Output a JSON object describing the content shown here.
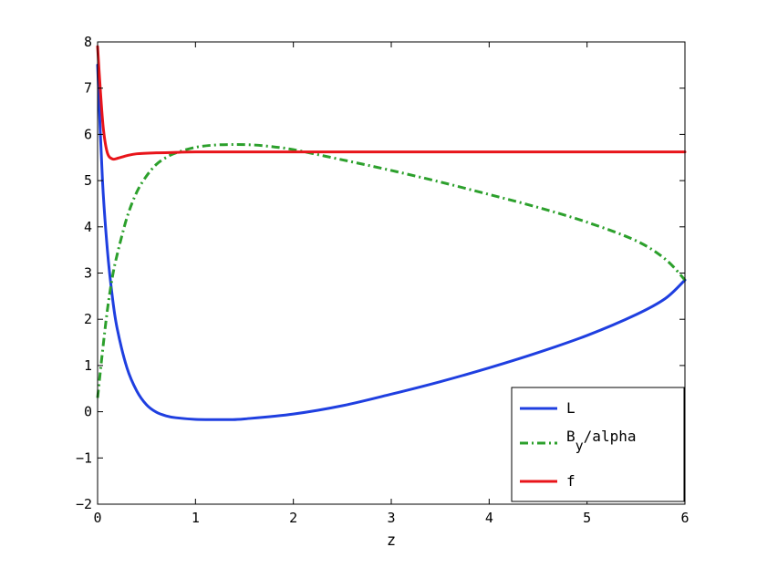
{
  "chart_data": {
    "type": "line",
    "title": "",
    "xlabel": "z",
    "ylabel": "",
    "xlim": [
      0,
      6
    ],
    "ylim": [
      -2,
      8
    ],
    "xticks": [
      0,
      1,
      2,
      3,
      4,
      5,
      6
    ],
    "yticks": [
      -2,
      -1,
      0,
      1,
      2,
      3,
      4,
      5,
      6,
      7,
      8
    ],
    "grid": false,
    "legend_position": "bottom-right",
    "series": [
      {
        "name": "L",
        "color": "#1f3fe0",
        "style": "solid",
        "x": [
          0,
          0.05,
          0.1,
          0.15,
          0.2,
          0.3,
          0.4,
          0.5,
          0.6,
          0.7,
          0.8,
          1.0,
          1.2,
          1.35,
          1.5,
          2.0,
          2.5,
          3.0,
          3.5,
          4.0,
          4.5,
          5.0,
          5.5,
          5.8,
          6.0
        ],
        "y": [
          7.5,
          5.0,
          3.5,
          2.5,
          1.8,
          0.95,
          0.45,
          0.15,
          -0.01,
          -0.09,
          -0.13,
          -0.165,
          -0.17,
          -0.17,
          -0.155,
          -0.05,
          0.13,
          0.38,
          0.65,
          0.95,
          1.28,
          1.65,
          2.1,
          2.45,
          2.85
        ]
      },
      {
        "name": "B_y/alpha",
        "label_main": "B",
        "label_sub": "y",
        "label_rest": "/alpha",
        "color": "#2ca02c",
        "style": "dashdot",
        "x": [
          0,
          0.05,
          0.1,
          0.15,
          0.2,
          0.3,
          0.4,
          0.5,
          0.6,
          0.7,
          0.8,
          1.0,
          1.2,
          1.4,
          1.6,
          1.8,
          2.0,
          2.5,
          3.0,
          3.5,
          4.0,
          4.5,
          5.0,
          5.5,
          5.8,
          6.0
        ],
        "y": [
          0.3,
          1.3,
          2.2,
          2.9,
          3.4,
          4.2,
          4.75,
          5.1,
          5.35,
          5.5,
          5.6,
          5.72,
          5.77,
          5.78,
          5.77,
          5.73,
          5.67,
          5.45,
          5.22,
          4.97,
          4.7,
          4.42,
          4.1,
          3.7,
          3.3,
          2.85
        ]
      },
      {
        "name": "f",
        "color": "#e8141a",
        "style": "solid",
        "x": [
          0,
          0.03,
          0.06,
          0.1,
          0.15,
          0.2,
          0.3,
          0.4,
          0.6,
          0.8,
          1.0,
          2.0,
          3.0,
          4.0,
          5.0,
          6.0
        ],
        "y": [
          7.9,
          6.9,
          6.1,
          5.6,
          5.47,
          5.48,
          5.54,
          5.58,
          5.6,
          5.61,
          5.62,
          5.62,
          5.62,
          5.62,
          5.62,
          5.62
        ]
      }
    ]
  }
}
